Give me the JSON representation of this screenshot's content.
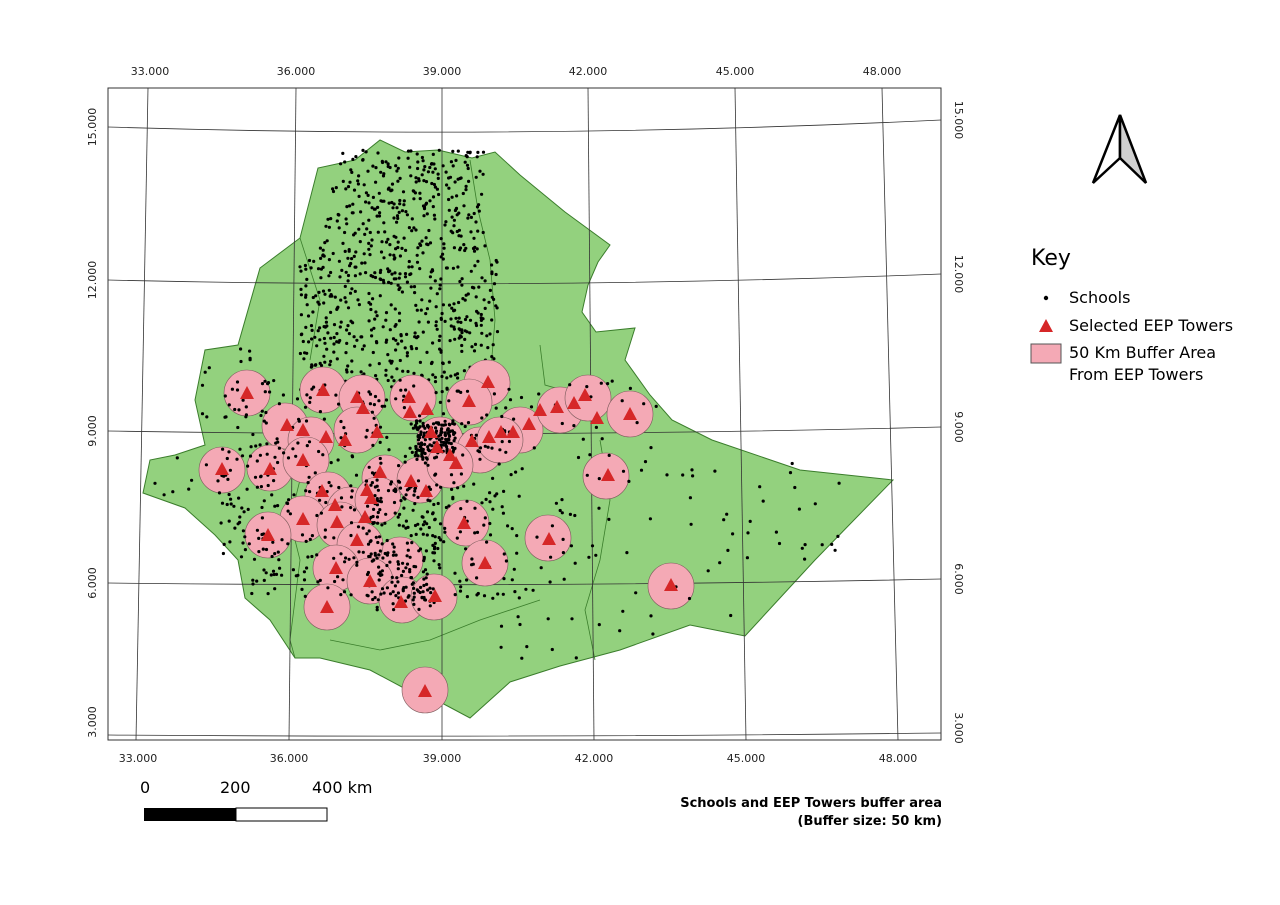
{
  "map": {
    "x_ticks": [
      "33.000",
      "36.000",
      "39.000",
      "42.000",
      "45.000",
      "48.000"
    ],
    "y_ticks": [
      "15.000",
      "12.000",
      "9.000",
      "6.000",
      "3.000"
    ],
    "colors": {
      "country_fill": "#93d17e",
      "country_border": "#3a7d2b",
      "buffer_fill": "#f4a9b5",
      "buffer_border": "#7a5a5a",
      "tower": "#d62728",
      "school": "#000000",
      "grid": "#333333"
    }
  },
  "north_arrow": {
    "icon": "north-arrow-icon"
  },
  "legend": {
    "title": "Key",
    "items": [
      {
        "symbol": "school-dot",
        "label": "Schools"
      },
      {
        "symbol": "tower-triangle",
        "label": "Selected EEP Towers"
      },
      {
        "symbol": "buffer-box",
        "label": "50 Km Buffer Area\nFrom EEP Towers"
      }
    ]
  },
  "scale_bar": {
    "labels": [
      "0",
      "200",
      "400 km"
    ]
  },
  "caption": {
    "line1": "Schools and EEP Towers buffer area",
    "line2": "(Buffer size: 50 km)"
  }
}
